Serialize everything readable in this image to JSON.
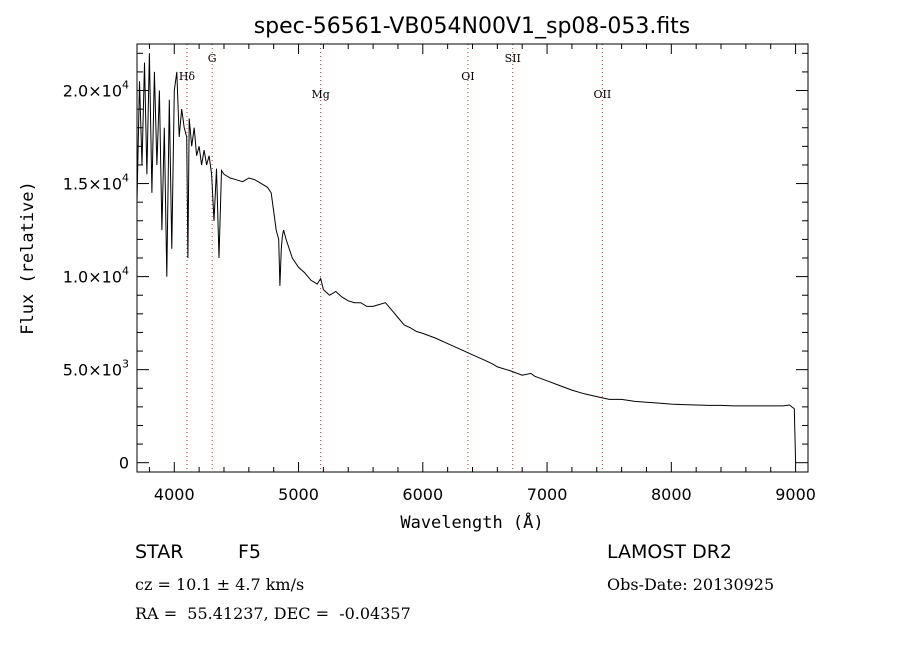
{
  "chart_data": {
    "type": "line",
    "title": "spec-56561-VB054N00V1_sp08-053.fits",
    "xlabel": "Wavelength (Å)",
    "ylabel": "Flux (relative)",
    "xlim": [
      3700,
      9100
    ],
    "ylim": [
      -500,
      22500
    ],
    "grid": false,
    "x_ticks": [
      4000,
      5000,
      6000,
      7000,
      8000,
      9000
    ],
    "x_tick_labels": [
      "4000",
      "5000",
      "6000",
      "7000",
      "8000",
      "9000"
    ],
    "y_ticks": [
      0,
      5000,
      10000,
      15000,
      20000
    ],
    "y_tick_labels": [
      {
        "mantissa": "0",
        "exp": ""
      },
      {
        "mantissa": "5.0×10",
        "exp": "3"
      },
      {
        "mantissa": "1.0×10",
        "exp": "4"
      },
      {
        "mantissa": "1.5×10",
        "exp": "4"
      },
      {
        "mantissa": "2.0×10",
        "exp": "4"
      }
    ],
    "lines": [
      {
        "label": "Hδ",
        "wavelength": 4102,
        "color": "#cc2222"
      },
      {
        "label": "G",
        "wavelength": 4305,
        "color": "#cc2222"
      },
      {
        "label": "Mg",
        "wavelength": 5178,
        "color": "#cc2222"
      },
      {
        "label": "OI",
        "wavelength": 6363,
        "color": "#cc2222"
      },
      {
        "label": "SII",
        "wavelength": 6724,
        "color": "#cc2222"
      },
      {
        "label": "OII",
        "wavelength": 7445,
        "color": "#cc2222"
      }
    ],
    "series": [
      {
        "color": "#000000",
        "x": [
          3700,
          3720,
          3740,
          3760,
          3780,
          3800,
          3820,
          3840,
          3860,
          3880,
          3900,
          3920,
          3940,
          3960,
          3980,
          4000,
          4020,
          4040,
          4060,
          4080,
          4100,
          4110,
          4120,
          4140,
          4160,
          4180,
          4200,
          4220,
          4240,
          4260,
          4280,
          4300,
          4320,
          4340,
          4360,
          4380,
          4400,
          4450,
          4500,
          4550,
          4600,
          4650,
          4700,
          4750,
          4780,
          4800,
          4820,
          4840,
          4850,
          4861,
          4870,
          4880,
          4900,
          4950,
          5000,
          5050,
          5100,
          5150,
          5178,
          5200,
          5250,
          5300,
          5350,
          5400,
          5450,
          5500,
          5550,
          5600,
          5650,
          5700,
          5750,
          5800,
          5850,
          5900,
          5950,
          6000,
          6100,
          6200,
          6300,
          6400,
          6500,
          6563,
          6600,
          6700,
          6800,
          6870,
          6900,
          7000,
          7100,
          7200,
          7300,
          7400,
          7500,
          7600,
          7700,
          7800,
          7900,
          8000,
          8100,
          8200,
          8300,
          8400,
          8500,
          8600,
          8700,
          8800,
          8900,
          8950,
          8990,
          9000
        ],
        "y": [
          14000,
          20500,
          16000,
          21500,
          15500,
          22000,
          14500,
          21000,
          16000,
          20000,
          12500,
          18000,
          10000,
          19500,
          11500,
          20000,
          21000,
          17500,
          19000,
          18000,
          17500,
          11000,
          18500,
          17000,
          18000,
          16500,
          17000,
          16000,
          16800,
          16000,
          16500,
          15500,
          13000,
          15800,
          11000,
          15700,
          15500,
          15300,
          15200,
          15100,
          15300,
          15200,
          15000,
          14800,
          14500,
          13500,
          12500,
          12000,
          9500,
          11500,
          12200,
          12500,
          12000,
          11000,
          10500,
          10200,
          9800,
          9600,
          9900,
          9300,
          9000,
          9200,
          8900,
          8700,
          8600,
          8600,
          8400,
          8400,
          8500,
          8600,
          8200,
          7800,
          7400,
          7250,
          7050,
          6950,
          6700,
          6400,
          6100,
          5800,
          5500,
          5300,
          5150,
          4950,
          4700,
          4800,
          4650,
          4400,
          4150,
          3900,
          3700,
          3550,
          3400,
          3400,
          3300,
          3250,
          3200,
          3150,
          3120,
          3100,
          3080,
          3080,
          3050,
          3050,
          3050,
          3050,
          3050,
          3100,
          2900,
          0
        ]
      }
    ]
  },
  "info": {
    "object_class": "STAR",
    "subclass": "F5",
    "survey": "LAMOST DR2",
    "velocity": "cz = 10.1 ± 4.7 km/s",
    "obs_date": "Obs-Date: 20130925",
    "coords": "RA =  55.41237, DEC =  -0.04357"
  }
}
